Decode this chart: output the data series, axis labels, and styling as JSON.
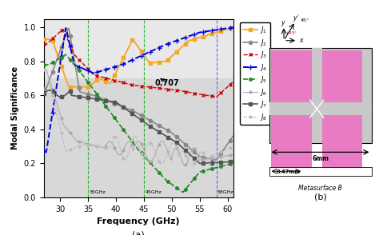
{
  "xlabel": "Frequency (GHz)",
  "ylabel": "Modal Significance",
  "xlim": [
    27,
    61
  ],
  "ylim": [
    0.0,
    1.05
  ],
  "xticks": [
    30,
    35,
    40,
    45,
    50,
    55,
    60
  ],
  "yticks": [
    0.0,
    0.2,
    0.4,
    0.6,
    0.8,
    1.0
  ],
  "vlines": [
    35,
    45,
    58
  ],
  "vline_labels": [
    "35GHz",
    "45GHz",
    "58GHz"
  ],
  "vline_colors": [
    "#00aa00",
    "#00aa00",
    "#4444ff"
  ],
  "hline_707": 0.707,
  "plot_bg_color": "#d8d8d8",
  "shaded_color": "#e8e8e8",
  "colors": {
    "J1": "#f5a623",
    "J2": "#888888",
    "J3": "#cc0000",
    "J4": "#0000dd",
    "J5": "#228b22",
    "J6": "#aaaaaa",
    "J7": "#555555",
    "J8": "#bbbbbb"
  },
  "pink": "#e87bc3",
  "light_gray_bg": "#d0d0d0"
}
